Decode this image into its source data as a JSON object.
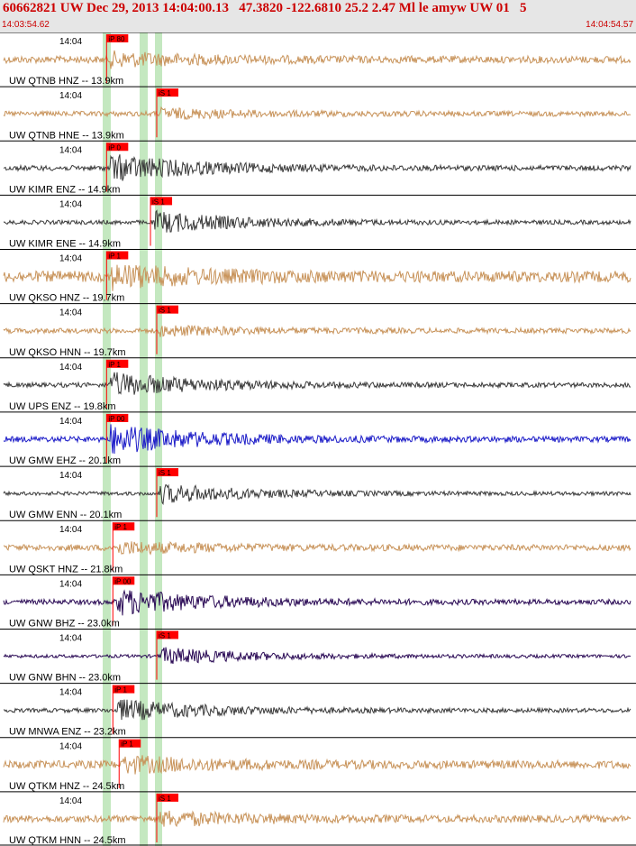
{
  "header": {
    "title": "60662821 UW Dec 29, 2013 14:04:00.13   47.3820 -122.6810 25.2 2.47 Ml le amyw UW 01   5",
    "time_start": "14:03:54.62",
    "time_end": "14:04:54.57"
  },
  "colors": {
    "header_bg": "#e6e6e6",
    "header_text": "#cc0000",
    "pick_red": "#ff0000",
    "green_band": "#c4e8c0",
    "trace_tan": "#c8935a",
    "trace_gray": "#3a3a3a",
    "trace_blue": "#1c1cc8",
    "trace_navy": "#2a0a55"
  },
  "chart_data": {
    "type": "seismogram",
    "title": "60662821 UW Dec 29, 2013 14:04:00.13   47.3820 -122.6810 25.2 2.47 Ml le amyw UW 01   5",
    "x_range": [
      "14:03:54.62",
      "14:04:54.57"
    ],
    "time_tick_label": "14:04",
    "traces": [
      {
        "label": "UW QTNB HNZ -- 13.9km",
        "pick": "iP 80",
        "color": "tan",
        "amplitude": 0.35,
        "onset": 0.17
      },
      {
        "label": "UW QTNB HNE -- 13.9km",
        "pick": "iS 1",
        "color": "tan",
        "amplitude": 0.25,
        "onset": 0.25
      },
      {
        "label": "UW KIMR ENZ -- 14.9km",
        "pick": "iP 0",
        "color": "gray",
        "amplitude": 0.55,
        "onset": 0.17
      },
      {
        "label": "UW KIMR ENE -- 14.9km",
        "pick": "iS 1",
        "color": "gray",
        "amplitude": 0.45,
        "onset": 0.24
      },
      {
        "label": "UW QKSO HNZ -- 19.7km",
        "pick": "iP 1",
        "color": "tan",
        "amplitude": 0.55,
        "onset": 0.17
      },
      {
        "label": "UW QKSO HNN -- 19.7km",
        "pick": "iS 1",
        "color": "tan",
        "amplitude": 0.25,
        "onset": 0.25
      },
      {
        "label": "UW UPS ENZ -- 19.8km",
        "pick": "iP 1",
        "color": "gray",
        "amplitude": 0.5,
        "onset": 0.17
      },
      {
        "label": "UW GMW EHZ -- 20.1km",
        "pick": "iP 00",
        "color": "blue",
        "amplitude": 0.6,
        "onset": 0.17
      },
      {
        "label": "UW GMW ENN -- 20.1km",
        "pick": "iS 1",
        "color": "gray",
        "amplitude": 0.4,
        "onset": 0.25
      },
      {
        "label": "UW QSKT HNZ -- 21.8km",
        "pick": "iP 1",
        "color": "tan",
        "amplitude": 0.3,
        "onset": 0.18
      },
      {
        "label": "UW GNW BHZ -- 23.0km",
        "pick": "iP 00",
        "color": "navy",
        "amplitude": 0.55,
        "onset": 0.18
      },
      {
        "label": "UW GNW BHN -- 23.0km",
        "pick": "iS 1",
        "color": "navy",
        "amplitude": 0.35,
        "onset": 0.25
      },
      {
        "label": "UW MNWA ENZ -- 23.2km",
        "pick": "iP 1",
        "color": "gray",
        "amplitude": 0.45,
        "onset": 0.18
      },
      {
        "label": "UW QTKM HNZ -- 24.5km",
        "pick": "iP 1",
        "color": "tan",
        "amplitude": 0.4,
        "onset": 0.19
      },
      {
        "label": "UW QTKM HNN -- 24.5km",
        "pick": "iS 1",
        "color": "tan",
        "amplitude": 0.35,
        "onset": 0.25
      }
    ]
  }
}
